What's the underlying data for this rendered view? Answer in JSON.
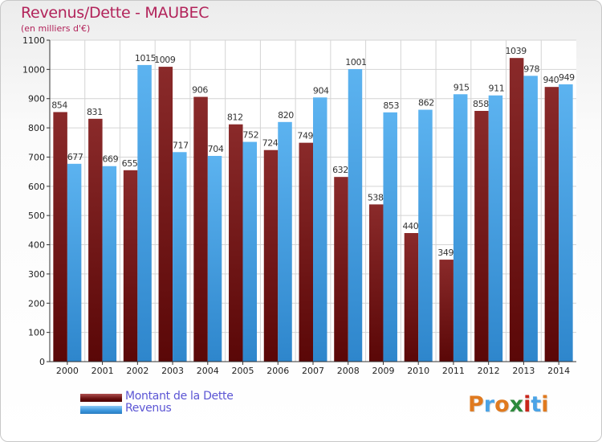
{
  "header": {
    "title": "Revenus/Dette - MAUBEC",
    "subtitle": "(en milliers d'€)"
  },
  "legend": {
    "items": [
      {
        "label": "Montant de la Dette",
        "color": "#7a1a1a"
      },
      {
        "label": "Revenus",
        "color": "#4aa3e6"
      }
    ]
  },
  "logo": {
    "text": "Proxiti",
    "colors": [
      "#e07a1f",
      "#4aa3e6",
      "#e07a1f",
      "#2d8a3c",
      "#c8261b",
      "#4aa3e6",
      "#e07a1f"
    ]
  },
  "chart_data": {
    "type": "bar",
    "title": "Revenus/Dette - MAUBEC",
    "subtitle": "(en milliers d'€)",
    "categories": [
      "2000",
      "2001",
      "2002",
      "2003",
      "2004",
      "2005",
      "2006",
      "2007",
      "2008",
      "2009",
      "2010",
      "2011",
      "2012",
      "2013",
      "2014"
    ],
    "series": [
      {
        "name": "Montant de la Dette",
        "color": "#7a1a1a",
        "values": [
          854,
          831,
          655,
          1009,
          906,
          812,
          724,
          749,
          632,
          538,
          440,
          349,
          858,
          1039,
          940
        ]
      },
      {
        "name": "Revenus",
        "color": "#4aa3e6",
        "values": [
          677,
          669,
          1015,
          717,
          704,
          752,
          820,
          904,
          1001,
          853,
          862,
          915,
          911,
          978,
          949
        ]
      }
    ],
    "ylim": [
      0,
      1100
    ],
    "yticks": [
      0,
      100,
      200,
      300,
      400,
      500,
      600,
      700,
      800,
      900,
      1000,
      1100
    ],
    "grid": true,
    "legend_position": "bottom-left"
  }
}
